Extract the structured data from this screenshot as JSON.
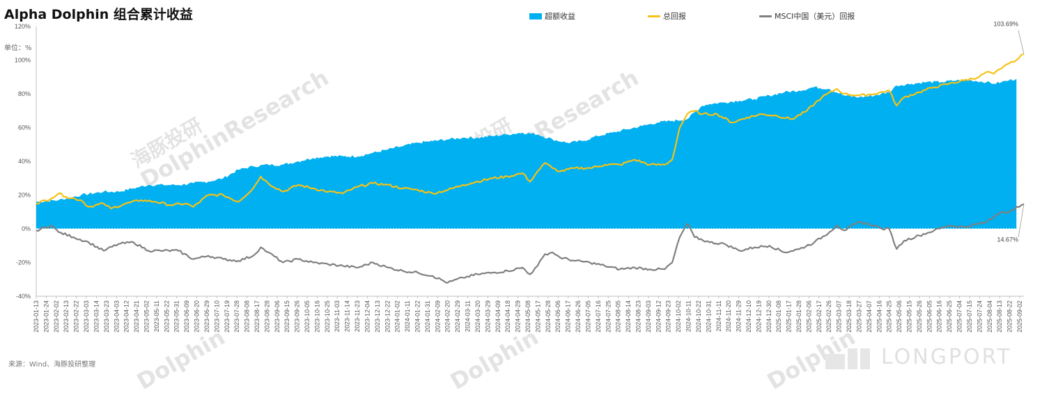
{
  "chart_data": {
    "type": "area",
    "title": "Alpha Dolphin 组合累计收益",
    "unit_label": "单位：%",
    "source": "来源：Wind、海豚投研整理",
    "ylim": [
      -40,
      120
    ],
    "yticks": [
      -40,
      -20,
      0,
      20,
      40,
      60,
      80,
      100,
      120
    ],
    "ytick_labels": [
      "-40%",
      "-20%",
      "0%",
      "20%",
      "40%",
      "60%",
      "80%",
      "100%",
      "120%"
    ],
    "x_tick_labels": [
      "2023-01-13",
      "2023-01-24",
      "2023-02-02",
      "2023-02-13",
      "2023-02-22",
      "2023-03-03",
      "2023-03-14",
      "2023-03-23",
      "2023-04-03",
      "2023-04-12",
      "2023-04-21",
      "2023-05-02",
      "2023-05-11",
      "2023-05-22",
      "2023-05-31",
      "2023-06-09",
      "2023-06-20",
      "2023-06-29",
      "2023-07-10",
      "2023-07-19",
      "2023-07-28",
      "2023-08-08",
      "2023-08-17",
      "2023-08-28",
      "2023-09-06",
      "2023-09-15",
      "2023-09-26",
      "2023-10-05",
      "2023-10-16",
      "2023-10-25",
      "2023-11-03",
      "2023-11-14",
      "2023-11-23",
      "2023-12-04",
      "2023-12-13",
      "2023-12-22",
      "2024-01-02",
      "2024-01-11",
      "2024-01-22",
      "2024-01-31",
      "2024-02-09",
      "2024-02-20",
      "2024-02-29",
      "2024-03-11",
      "2024-03-20",
      "2024-03-29",
      "2024-04-09",
      "2024-04-18",
      "2024-04-29",
      "2024-05-08",
      "2024-05-17",
      "2024-05-28",
      "2024-06-06",
      "2024-06-17",
      "2024-06-26",
      "2024-07-05",
      "2024-07-16",
      "2024-07-25",
      "2024-08-05",
      "2024-08-14",
      "2024-08-23",
      "2024-09-03",
      "2024-09-12",
      "2024-09-23",
      "2024-10-02",
      "2024-10-11",
      "2024-10-22",
      "2024-10-31",
      "2024-11-11",
      "2024-11-20",
      "2024-11-29",
      "2024-12-10",
      "2024-12-19",
      "2024-12-30",
      "2025-01-08",
      "2025-01-17",
      "2025-01-28",
      "2025-02-06",
      "2025-02-17",
      "2025-02-26",
      "2025-03-07",
      "2025-03-18",
      "2025-03-27",
      "2025-04-07",
      "2025-04-16",
      "2025-04-25",
      "2025-05-06",
      "2025-05-15",
      "2025-05-26",
      "2025-06-05",
      "2025-06-16",
      "2025-06-25",
      "2025-07-04",
      "2025-07-15",
      "2025-07-24",
      "2025-08-04",
      "2025-08-13",
      "2025-08-22",
      "2025-09-02"
    ],
    "legend_position": "top",
    "grid": false,
    "series": [
      {
        "name": "超额收益",
        "kind": "area",
        "color": "#00B0F0",
        "points": [
          [
            0,
            16
          ],
          [
            3,
            17
          ],
          [
            6,
            20
          ],
          [
            9,
            22
          ],
          [
            11,
            22
          ],
          [
            13,
            24
          ],
          [
            15,
            26
          ],
          [
            17,
            26
          ],
          [
            19,
            26
          ],
          [
            21,
            27
          ],
          [
            23,
            28
          ],
          [
            25,
            30
          ],
          [
            27,
            35
          ],
          [
            29,
            37
          ],
          [
            31,
            38
          ],
          [
            33,
            38
          ],
          [
            35,
            40
          ],
          [
            37,
            42
          ],
          [
            39,
            43
          ],
          [
            41,
            43
          ],
          [
            43,
            43
          ],
          [
            45,
            45
          ],
          [
            47,
            47
          ],
          [
            49,
            49
          ],
          [
            51,
            51
          ],
          [
            53,
            52
          ],
          [
            55,
            53
          ],
          [
            57,
            54
          ],
          [
            59,
            54
          ],
          [
            61,
            55
          ],
          [
            63,
            56
          ],
          [
            65,
            57
          ],
          [
            67,
            56
          ],
          [
            69,
            53
          ],
          [
            71,
            51
          ],
          [
            73,
            52
          ],
          [
            75,
            55
          ],
          [
            77,
            57
          ],
          [
            79,
            59
          ],
          [
            81,
            61
          ],
          [
            83,
            63
          ],
          [
            85,
            64
          ],
          [
            87,
            65
          ],
          [
            89,
            73
          ],
          [
            90,
            74
          ],
          [
            92,
            75
          ],
          [
            94,
            76
          ],
          [
            96,
            77
          ],
          [
            98,
            79
          ],
          [
            100,
            81
          ],
          [
            102,
            82
          ],
          [
            104,
            84
          ],
          [
            106,
            83
          ],
          [
            108,
            79
          ],
          [
            110,
            78
          ],
          [
            112,
            79
          ],
          [
            114,
            81
          ],
          [
            115,
            85
          ],
          [
            117,
            86
          ],
          [
            119,
            87
          ],
          [
            121,
            87
          ],
          [
            123,
            88
          ],
          [
            125,
            88
          ],
          [
            127,
            87
          ],
          [
            128,
            86
          ],
          [
            129,
            87
          ],
          [
            130,
            88
          ],
          [
            131,
            89
          ]
        ]
      },
      {
        "name": "总回报",
        "kind": "line",
        "color": "#F5C216",
        "points": [
          [
            0,
            15
          ],
          [
            2,
            18
          ],
          [
            3,
            21
          ],
          [
            4,
            19
          ],
          [
            6,
            17
          ],
          [
            7,
            13
          ],
          [
            9,
            15
          ],
          [
            10,
            12
          ],
          [
            12,
            15
          ],
          [
            14,
            17
          ],
          [
            16,
            16
          ],
          [
            18,
            14
          ],
          [
            20,
            15
          ],
          [
            21,
            13
          ],
          [
            23,
            20
          ],
          [
            25,
            20
          ],
          [
            27,
            16
          ],
          [
            29,
            24
          ],
          [
            30,
            31
          ],
          [
            31,
            27
          ],
          [
            33,
            22
          ],
          [
            35,
            26
          ],
          [
            37,
            24
          ],
          [
            39,
            22
          ],
          [
            41,
            21
          ],
          [
            43,
            25
          ],
          [
            45,
            27
          ],
          [
            47,
            26
          ],
          [
            49,
            24
          ],
          [
            51,
            23
          ],
          [
            53,
            21
          ],
          [
            55,
            23
          ],
          [
            57,
            26
          ],
          [
            59,
            28
          ],
          [
            61,
            30
          ],
          [
            63,
            31
          ],
          [
            65,
            33
          ],
          [
            66,
            28
          ],
          [
            67,
            34
          ],
          [
            68,
            39
          ],
          [
            69,
            36
          ],
          [
            70,
            34
          ],
          [
            72,
            36
          ],
          [
            74,
            36
          ],
          [
            76,
            38
          ],
          [
            78,
            38
          ],
          [
            80,
            41
          ],
          [
            82,
            38
          ],
          [
            84,
            38
          ],
          [
            85,
            41
          ],
          [
            86,
            60
          ],
          [
            87,
            68
          ],
          [
            88,
            70
          ],
          [
            89,
            68
          ],
          [
            91,
            68
          ],
          [
            93,
            63
          ],
          [
            95,
            66
          ],
          [
            97,
            68
          ],
          [
            99,
            67
          ],
          [
            101,
            65
          ],
          [
            103,
            70
          ],
          [
            105,
            78
          ],
          [
            107,
            83
          ],
          [
            108,
            80
          ],
          [
            110,
            79
          ],
          [
            112,
            80
          ],
          [
            114,
            82
          ],
          [
            115,
            73
          ],
          [
            116,
            78
          ],
          [
            118,
            81
          ],
          [
            120,
            84
          ],
          [
            122,
            86
          ],
          [
            124,
            88
          ],
          [
            126,
            90
          ],
          [
            127,
            93
          ],
          [
            128,
            92
          ],
          [
            129,
            95
          ],
          [
            130,
            98
          ],
          [
            131,
            100
          ],
          [
            132,
            103.69
          ]
        ]
      },
      {
        "name": "MSCI中国（美元）回报",
        "kind": "line",
        "color": "#7F7F7F",
        "points": [
          [
            0,
            -1
          ],
          [
            2,
            2
          ],
          [
            3,
            -2
          ],
          [
            5,
            -5
          ],
          [
            7,
            -8
          ],
          [
            9,
            -13
          ],
          [
            11,
            -9
          ],
          [
            13,
            -8
          ],
          [
            15,
            -13
          ],
          [
            17,
            -13
          ],
          [
            19,
            -13
          ],
          [
            21,
            -18
          ],
          [
            23,
            -16
          ],
          [
            25,
            -18
          ],
          [
            27,
            -19
          ],
          [
            29,
            -16
          ],
          [
            30,
            -11
          ],
          [
            31,
            -14
          ],
          [
            33,
            -20
          ],
          [
            35,
            -18
          ],
          [
            37,
            -20
          ],
          [
            39,
            -21
          ],
          [
            41,
            -22
          ],
          [
            43,
            -23
          ],
          [
            45,
            -20
          ],
          [
            47,
            -23
          ],
          [
            49,
            -25
          ],
          [
            51,
            -26
          ],
          [
            53,
            -28
          ],
          [
            55,
            -32
          ],
          [
            57,
            -29
          ],
          [
            59,
            -27
          ],
          [
            61,
            -26
          ],
          [
            63,
            -25
          ],
          [
            65,
            -23
          ],
          [
            66,
            -27
          ],
          [
            67,
            -22
          ],
          [
            68,
            -15
          ],
          [
            69,
            -14
          ],
          [
            70,
            -17
          ],
          [
            72,
            -19
          ],
          [
            74,
            -20
          ],
          [
            76,
            -22
          ],
          [
            78,
            -24
          ],
          [
            80,
            -23
          ],
          [
            82,
            -24
          ],
          [
            84,
            -24
          ],
          [
            85,
            -20
          ],
          [
            86,
            -5
          ],
          [
            87,
            3
          ],
          [
            88,
            -5
          ],
          [
            90,
            -8
          ],
          [
            92,
            -9
          ],
          [
            94,
            -13
          ],
          [
            96,
            -11
          ],
          [
            98,
            -10
          ],
          [
            100,
            -14
          ],
          [
            102,
            -12
          ],
          [
            104,
            -8
          ],
          [
            106,
            -2
          ],
          [
            107,
            2
          ],
          [
            108,
            -1
          ],
          [
            110,
            4
          ],
          [
            112,
            2
          ],
          [
            113,
            0
          ],
          [
            114,
            0
          ],
          [
            115,
            -12
          ],
          [
            116,
            -7
          ],
          [
            118,
            -4
          ],
          [
            120,
            -1
          ],
          [
            122,
            2
          ],
          [
            124,
            1
          ],
          [
            126,
            3
          ],
          [
            127,
            4
          ],
          [
            128,
            7
          ],
          [
            129,
            10
          ],
          [
            130,
            10
          ],
          [
            131,
            13
          ],
          [
            132,
            14.67
          ]
        ]
      }
    ],
    "annotations": [
      {
        "text": "103.69%",
        "series": "总回报",
        "x": 132,
        "y": 103.69
      },
      {
        "text": "14.67%",
        "series": "MSCI中国（美元）回报",
        "x": 132,
        "y": 14.67
      }
    ],
    "x_max_index": 132
  },
  "watermarks": {
    "cn": "海豚投研",
    "en": "DolphinResearch",
    "en_short": "Dolphin",
    "brand": "LONGPORT"
  }
}
